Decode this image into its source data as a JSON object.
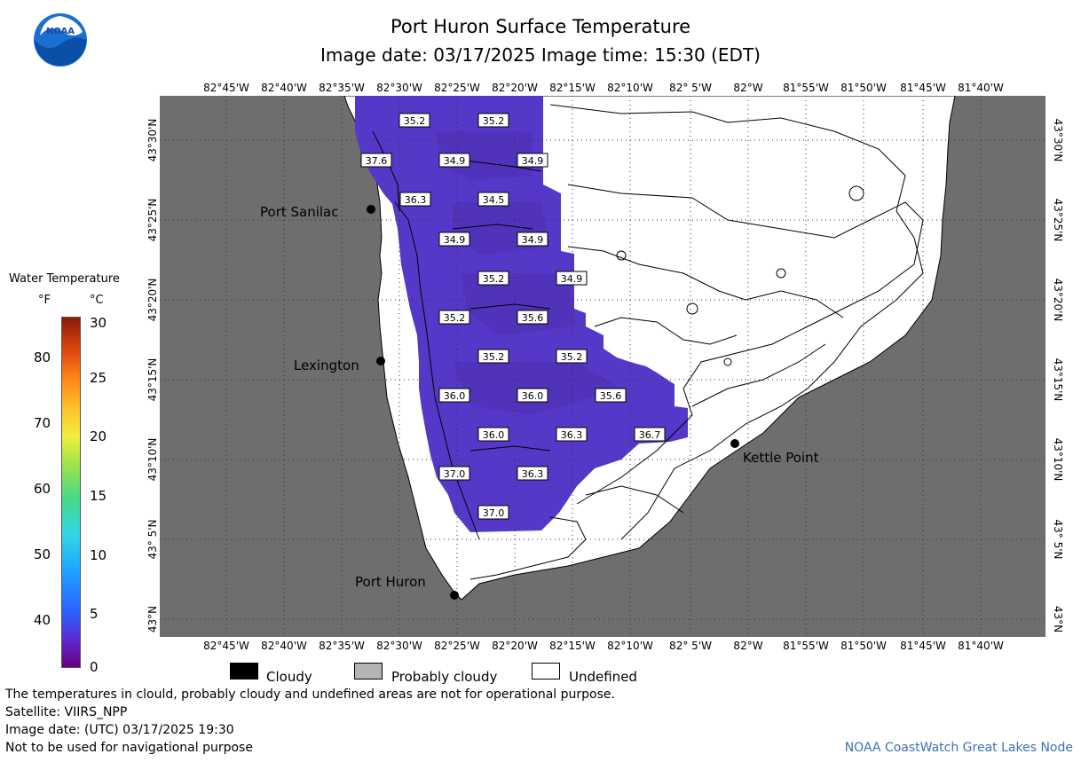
{
  "title": "Port Huron Surface Temperature",
  "subtitle": "Image date: 03/17/2025     Image time: 15:30 (EDT)",
  "logo_text": "NOAA",
  "longitude_labels": [
    "82°45'W",
    "82°40'W",
    "82°35'W",
    "82°30'W",
    "82°25'W",
    "82°20'W",
    "82°15'W",
    "82°10'W",
    "82° 5'W",
    "82°W",
    "81°55'W",
    "81°50'W",
    "81°45'W",
    "81°40'W"
  ],
  "latitude_labels": [
    "43°30'N",
    "43°25'N",
    "43°20'N",
    "43°15'N",
    "43°10'N",
    "43° 5'N",
    "43°N"
  ],
  "cities": {
    "port_sanilac": "Port Sanilac",
    "lexington": "Lexington",
    "kettle_point": "Kettle Point",
    "port_huron": "Port Huron"
  },
  "temperature_labels": [
    "35.2",
    "35.2",
    "37.6",
    "34.9",
    "34.9",
    "36.3",
    "34.5",
    "34.9",
    "34.9",
    "35.2",
    "34.9",
    "35.2",
    "35.6",
    "35.2",
    "35.2",
    "36.0",
    "36.0",
    "35.6",
    "36.0",
    "36.3",
    "36.7",
    "37.0",
    "36.3",
    "37.0"
  ],
  "legend": {
    "title": "Water Temperature",
    "unit_f": "°F",
    "unit_c": "°C",
    "f_ticks": [
      "80",
      "70",
      "60",
      "50",
      "40"
    ],
    "c_ticks": [
      "30",
      "25",
      "20",
      "15",
      "10",
      "5",
      "0"
    ],
    "colors": {
      "cloudy": "#000000",
      "probably_cloudy": "#b4b4b4",
      "undefined": "#ffffff",
      "land": "#6e6e6e",
      "water_cold": "#5a3cc8"
    }
  },
  "keys": {
    "cloudy": "Cloudy",
    "probably_cloudy": "Probably cloudy",
    "undefined": "Undefined"
  },
  "footer": {
    "line1": "The temperatures in clould, probably cloudy and undefined areas are not for operational purpose.",
    "line2": "Satellite: VIIRS_NPP",
    "line3": "Image date: (UTC) 03/17/2025  19:30",
    "line4": "Not to be used for navigational purpose",
    "credit": "NOAA CoastWatch Great Lakes Node"
  }
}
